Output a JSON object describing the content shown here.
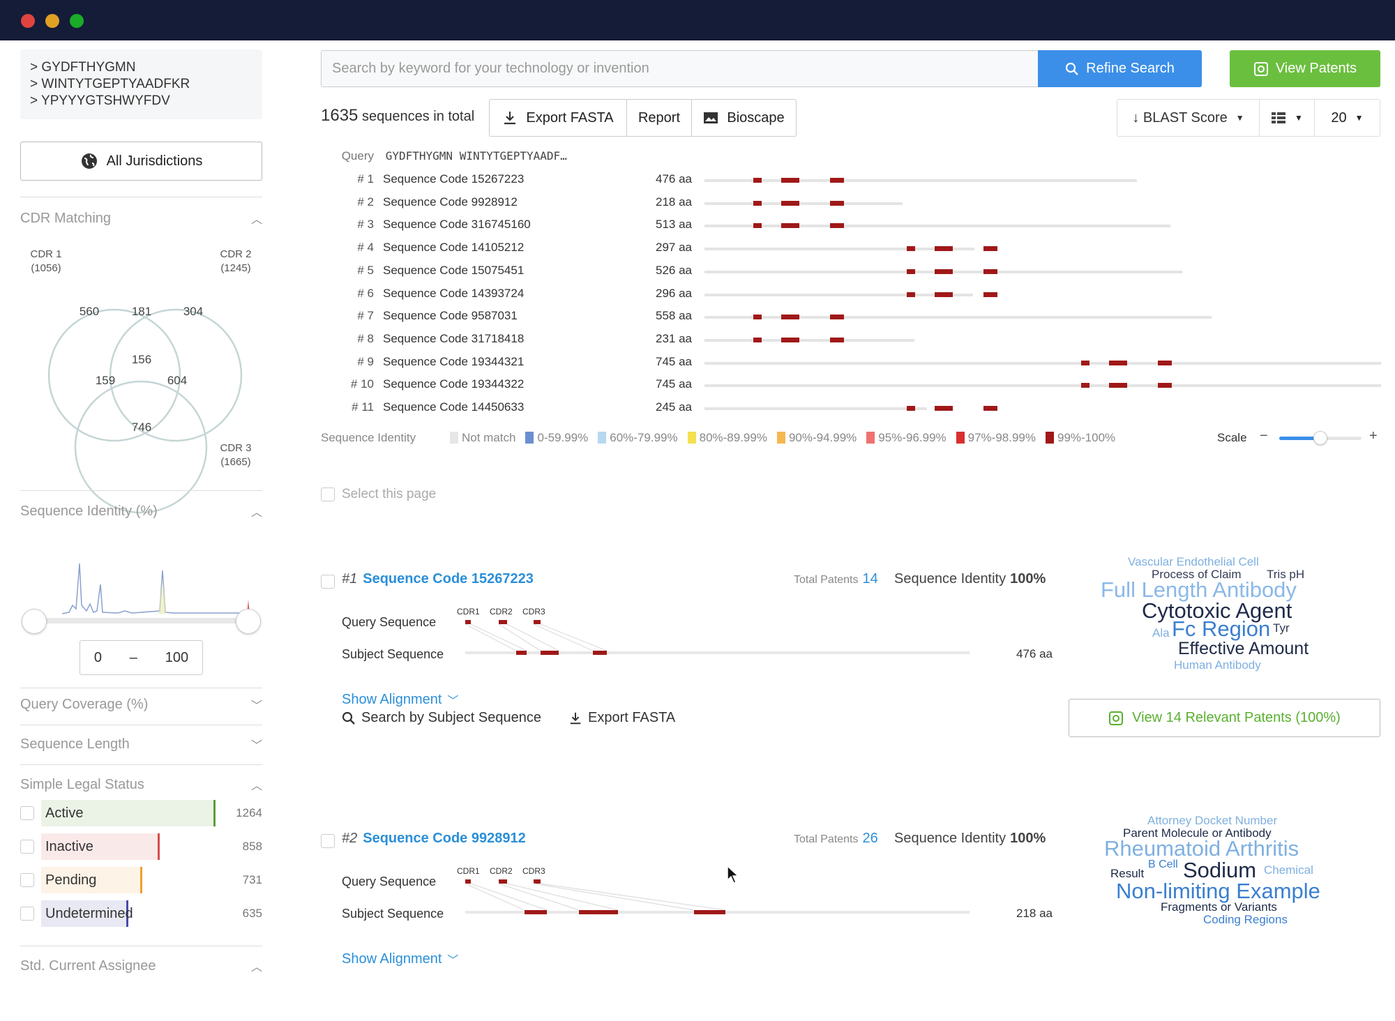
{
  "window": {
    "controls": [
      "close",
      "minimize",
      "maximize"
    ],
    "colors": {
      "close": "#e0443e",
      "minimize": "#dea123",
      "maximize": "#1aab29"
    }
  },
  "sidebar": {
    "queries": [
      "> GYDFTHYGMN",
      "> WINTYTGEPTYAADFKR",
      "> YPYYYGTSHWYFDV"
    ],
    "jurisdiction_label": "All Jurisdictions",
    "cdr": {
      "title": "CDR Matching",
      "sets": [
        {
          "name": "CDR 1",
          "count": "(1056)"
        },
        {
          "name": "CDR 2",
          "count": "(1245)"
        },
        {
          "name": "CDR 3",
          "count": "(1665)"
        }
      ],
      "regions": {
        "only1": "560",
        "c12": "181",
        "only2": "304",
        "c123": "156",
        "c13": "159",
        "c23": "604",
        "only3": "746"
      }
    },
    "seq_identity": {
      "title": "Sequence Identity (%)",
      "min": "0",
      "dash": "–",
      "max": "100"
    },
    "query_coverage_title": "Query Coverage (%)",
    "seq_length_title": "Sequence Length",
    "legal_status": {
      "title": "Simple Legal Status",
      "items": [
        {
          "label": "Active",
          "count": "1264",
          "color": "#5a9e3a",
          "fill": 1.0
        },
        {
          "label": "Inactive",
          "count": "858",
          "color": "#d84a4a",
          "fill": 0.68
        },
        {
          "label": "Pending",
          "count": "731",
          "color": "#f0a030",
          "fill": 0.58
        },
        {
          "label": "Undetermined",
          "count": "635",
          "color": "#4a4aa8",
          "fill": 0.5
        }
      ]
    },
    "assignee_title": "Std. Current Assignee"
  },
  "toolbar": {
    "search_placeholder": "Search by keyword for your technology or invention",
    "refine_label": "Refine Search",
    "view_patents_label": "View Patents",
    "total_count": "1635",
    "total_suffix": "sequences in total",
    "export_fasta": "Export FASTA",
    "report": "Report",
    "bioscape": "Bioscape",
    "sort_label": "↓ BLAST Score",
    "page_size": "20"
  },
  "overview": {
    "query_label": "Query",
    "query_seq": "GYDFTHYGMN WINTYTGEPTYAADF…",
    "rows": [
      {
        "num": "# 1",
        "name": "Sequence Code 15267223",
        "aa": "476 aa",
        "len": 476,
        "start": 0
      },
      {
        "num": "# 2",
        "name": "Sequence Code 9928912",
        "aa": "218 aa",
        "len": 218,
        "start": 0
      },
      {
        "num": "# 3",
        "name": "Sequence Code 316745160",
        "aa": "513 aa",
        "len": 513,
        "start": 0
      },
      {
        "num": "# 4",
        "name": "Sequence Code 14105212",
        "aa": "297 aa",
        "len": 297,
        "start": 0
      },
      {
        "num": "# 5",
        "name": "Sequence Code 15075451",
        "aa": "526 aa",
        "len": 526,
        "start": 0
      },
      {
        "num": "# 6",
        "name": "Sequence Code 14393724",
        "aa": "296 aa",
        "len": 296,
        "start": 0
      },
      {
        "num": "# 7",
        "name": "Sequence Code 9587031",
        "aa": "558 aa",
        "len": 558,
        "start": 0
      },
      {
        "num": "# 8",
        "name": "Sequence Code 31718418",
        "aa": "231 aa",
        "len": 231,
        "start": 0
      },
      {
        "num": "# 9",
        "name": "Sequence Code 19344321",
        "aa": "745 aa",
        "len": 745,
        "start": 0
      },
      {
        "num": "# 10",
        "name": "Sequence Code 19344322",
        "aa": "745 aa",
        "len": 745,
        "start": 0
      },
      {
        "num": "# 11",
        "name": "Sequence Code 14450633",
        "aa": "245 aa",
        "len": 245,
        "start": 0
      }
    ],
    "legend_title": "Sequence Identity",
    "legend": [
      {
        "label": "Not match",
        "color": "#e6e6e6"
      },
      {
        "label": "0-59.99%",
        "color": "#6a8fd0"
      },
      {
        "label": "60%-79.99%",
        "color": "#b8d8f0"
      },
      {
        "label": "80%-89.99%",
        "color": "#f5e050"
      },
      {
        "label": "90%-94.99%",
        "color": "#f5b850"
      },
      {
        "label": "95%-96.99%",
        "color": "#f07070"
      },
      {
        "label": "97%-98.99%",
        "color": "#d83030"
      },
      {
        "label": "99%-100%",
        "color": "#a01818"
      }
    ],
    "scale_label": "Scale",
    "scale_minus": "−",
    "scale_plus": "+",
    "scale_value": 0.5
  },
  "select_page_label": "Select this page",
  "results": [
    {
      "num": "#1",
      "title": "Sequence Code 15267223",
      "total_label": "Total Patents",
      "total": "14",
      "identity_label": "Sequence Identity",
      "identity": "100%",
      "query_label": "Query Sequence",
      "subject_label": "Subject Sequence",
      "aa": "476 aa",
      "cdr_labels": [
        "CDR1",
        "CDR2",
        "CDR3"
      ],
      "show_alignment": "Show Alignment",
      "words": [
        {
          "t": "Vascular Endothelial Cell",
          "size": 17,
          "color": "#7fb0e0"
        },
        {
          "t": "Process of Claim",
          "size": 17,
          "color": "#333b55"
        },
        {
          "t": "Tris pH",
          "size": 17,
          "color": "#333b55"
        },
        {
          "t": "Full Length Antibody",
          "size": 31,
          "color": "#8ab8e8"
        },
        {
          "t": "Cytotoxic Agent",
          "size": 31,
          "color": "#1e2a48"
        },
        {
          "t": "Ala",
          "size": 17,
          "color": "#7fb0e0"
        },
        {
          "t": "Fc Region",
          "size": 31,
          "color": "#3a7fd0"
        },
        {
          "t": "Tyr",
          "size": 17,
          "color": "#333b55"
        },
        {
          "t": "Effective Amount",
          "size": 25,
          "color": "#1e2a48"
        },
        {
          "t": "Human Antibody",
          "size": 17,
          "color": "#7fb0e0"
        }
      ]
    },
    {
      "num": "#2",
      "title": "Sequence Code 9928912",
      "total_label": "Total Patents",
      "total": "26",
      "identity_label": "Sequence Identity",
      "identity": "100%",
      "query_label": "Query Sequence",
      "subject_label": "Subject Sequence",
      "aa": "218 aa",
      "cdr_labels": [
        "CDR1",
        "CDR2",
        "CDR3"
      ],
      "show_alignment": "Show Alignment",
      "words": [
        {
          "t": "Attorney Docket Number",
          "size": 17,
          "color": "#7fb0e0"
        },
        {
          "t": "Parent Molecule or Antibody",
          "size": 17,
          "color": "#1e2a48"
        },
        {
          "t": "Rheumatoid Arthritis",
          "size": 31,
          "color": "#7fb0e0"
        },
        {
          "t": "Result",
          "size": 17,
          "color": "#1e2a48"
        },
        {
          "t": "B Cell",
          "size": 16,
          "color": "#3a7fd0"
        },
        {
          "t": "Sodium",
          "size": 31,
          "color": "#1e2a48"
        },
        {
          "t": "Chemical",
          "size": 17,
          "color": "#7fb0e0"
        },
        {
          "t": "Non-limiting Example",
          "size": 31,
          "color": "#3a7fd0"
        },
        {
          "t": "Fragments or Variants",
          "size": 17,
          "color": "#1e2a48"
        },
        {
          "t": "Coding Regions",
          "size": 17,
          "color": "#3a7fd0"
        }
      ]
    }
  ],
  "actions": {
    "search_subject": "Search by Subject Sequence",
    "export_fasta": "Export FASTA",
    "view_relevant": "View 14 Relevant Patents (100%)"
  }
}
